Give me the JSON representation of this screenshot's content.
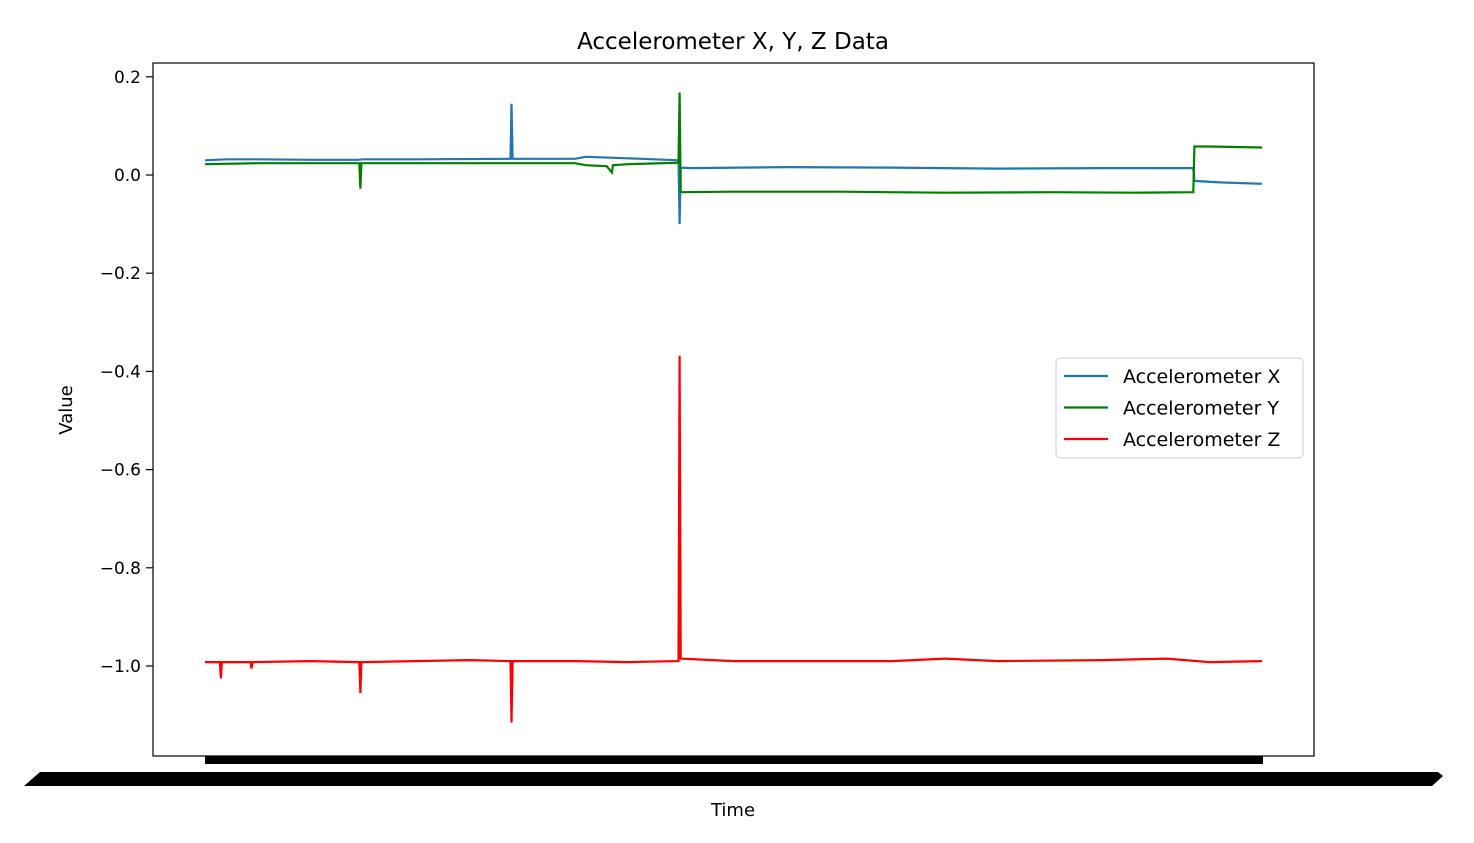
{
  "chart_data": {
    "type": "line",
    "title": "Accelerometer X, Y, Z Data",
    "xlabel": "Time",
    "ylabel": "Value",
    "x_tick_labels": "dense, overlapping and unreadable",
    "x_range": [
      0,
      100
    ],
    "ylim": [
      -1.18,
      0.23
    ],
    "yticks": [
      0.2,
      0.0,
      -0.2,
      -0.4,
      -0.6,
      -0.8,
      -1.0
    ],
    "ytick_labels": [
      "0.2",
      "0.0",
      "−0.2",
      "−0.4",
      "−0.6",
      "−0.8",
      "−1.0"
    ],
    "grid": false,
    "legend_position": "center-right",
    "series": [
      {
        "name": "Accelerometer X",
        "color": "#1f77b4",
        "points": [
          [
            0,
            0.03
          ],
          [
            2,
            0.032
          ],
          [
            5,
            0.032
          ],
          [
            10,
            0.031
          ],
          [
            14.5,
            0.031
          ],
          [
            15,
            0.032
          ],
          [
            20,
            0.032
          ],
          [
            28.9,
            0.033
          ],
          [
            29,
            0.145
          ],
          [
            29.1,
            0.033
          ],
          [
            35,
            0.033
          ],
          [
            36,
            0.037
          ],
          [
            40,
            0.034
          ],
          [
            44.8,
            0.03
          ],
          [
            44.9,
            -0.1
          ],
          [
            45.0,
            0.015
          ],
          [
            46,
            0.014
          ],
          [
            55,
            0.016
          ],
          [
            65,
            0.015
          ],
          [
            75,
            0.013
          ],
          [
            85,
            0.014
          ],
          [
            93.5,
            0.014
          ],
          [
            93.6,
            -0.012
          ],
          [
            96,
            -0.015
          ],
          [
            100,
            -0.018
          ]
        ]
      },
      {
        "name": "Accelerometer Y",
        "color": "#008000",
        "points": [
          [
            0,
            0.022
          ],
          [
            5,
            0.024
          ],
          [
            14.6,
            0.024
          ],
          [
            14.7,
            -0.028
          ],
          [
            14.8,
            0.024
          ],
          [
            20,
            0.024
          ],
          [
            35,
            0.024
          ],
          [
            36,
            0.02
          ],
          [
            38,
            0.018
          ],
          [
            38.5,
            0.005
          ],
          [
            38.6,
            0.02
          ],
          [
            40,
            0.022
          ],
          [
            44.8,
            0.025
          ],
          [
            44.9,
            0.168
          ],
          [
            45.0,
            -0.035
          ],
          [
            50,
            -0.034
          ],
          [
            60,
            -0.034
          ],
          [
            70,
            -0.036
          ],
          [
            80,
            -0.035
          ],
          [
            88,
            -0.036
          ],
          [
            93.5,
            -0.035
          ],
          [
            93.6,
            0.058
          ],
          [
            95,
            0.058
          ],
          [
            100,
            0.056
          ]
        ]
      },
      {
        "name": "Accelerometer Z",
        "color": "#ff0000",
        "points": [
          [
            0,
            -0.992
          ],
          [
            1.4,
            -0.992
          ],
          [
            1.5,
            -1.025
          ],
          [
            1.6,
            -0.992
          ],
          [
            4.3,
            -0.992
          ],
          [
            4.4,
            -1.005
          ],
          [
            4.5,
            -0.992
          ],
          [
            10,
            -0.99
          ],
          [
            14.6,
            -0.992
          ],
          [
            14.7,
            -1.055
          ],
          [
            14.8,
            -0.992
          ],
          [
            25,
            -0.988
          ],
          [
            28.9,
            -0.99
          ],
          [
            29.0,
            -1.115
          ],
          [
            29.1,
            -0.99
          ],
          [
            35,
            -0.99
          ],
          [
            40,
            -0.992
          ],
          [
            44.8,
            -0.99
          ],
          [
            44.9,
            -0.368
          ],
          [
            45.0,
            -0.985
          ],
          [
            50,
            -0.99
          ],
          [
            65,
            -0.99
          ],
          [
            70,
            -0.985
          ],
          [
            75,
            -0.99
          ],
          [
            85,
            -0.988
          ],
          [
            91,
            -0.985
          ],
          [
            95,
            -0.992
          ],
          [
            100,
            -0.99
          ]
        ]
      }
    ]
  }
}
